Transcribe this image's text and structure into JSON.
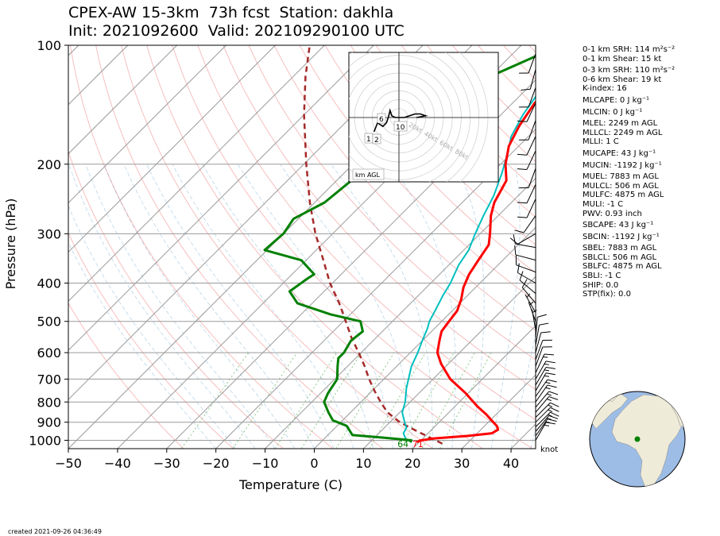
{
  "header": {
    "title_line1": "CPEX-AW 15-3km  73h fcst  Station: dakhla",
    "title_line2": "Init: 2021092600  Valid: 202109290100 UTC"
  },
  "footer": {
    "created": "created 2021-09-26 04:36:49"
  },
  "indices": [
    {
      "text": "0-1 km SRH: 114 m²s⁻²",
      "gap": false
    },
    {
      "text": "0-1 km Shear: 15 kt",
      "gap": false
    },
    {
      "text": "0-3 km SRH: 110 m²s⁻²",
      "gap": true
    },
    {
      "text": "0-6 km Shear: 19 kt",
      "gap": false
    },
    {
      "text": "K-index: 16",
      "gap": false
    },
    {
      "text": "MLCAPE: 0 J kg⁻¹",
      "gap": true
    },
    {
      "text": "MLCIN: 0 J kg⁻¹",
      "gap": true
    },
    {
      "text": "MLEL: 2249 m AGL",
      "gap": true
    },
    {
      "text": "MLLCL: 2249 m AGL",
      "gap": false
    },
    {
      "text": "MLLI: 1 C",
      "gap": false
    },
    {
      "text": "MUCAPE: 43 J kg⁻¹",
      "gap": true
    },
    {
      "text": "MUCIN: -1192 J kg⁻¹",
      "gap": true
    },
    {
      "text": "MUEL: 7883 m AGL",
      "gap": true
    },
    {
      "text": "MULCL: 506 m AGL",
      "gap": false
    },
    {
      "text": "MULFC: 4875 m AGL",
      "gap": false
    },
    {
      "text": "MULI: -1 C",
      "gap": false
    },
    {
      "text": "PWV: 0.93 inch",
      "gap": false
    },
    {
      "text": "SBCAPE: 43 J kg⁻¹",
      "gap": true
    },
    {
      "text": "SBCIN: -1192 J kg⁻¹",
      "gap": true
    },
    {
      "text": "SBEL: 7883 m AGL",
      "gap": true
    },
    {
      "text": "SBLCL: 506 m AGL",
      "gap": false
    },
    {
      "text": "SBLFC: 4875 m AGL",
      "gap": false
    },
    {
      "text": "SBLI: -1 C",
      "gap": false
    },
    {
      "text": "SHIP: 0.0",
      "gap": false
    },
    {
      "text": "STP(fix): 0.0",
      "gap": false
    }
  ],
  "chart_data": {
    "type": "line",
    "subtype": "skew-T log-p",
    "xlabel": "Temperature (C)",
    "ylabel": "Pressure (hPa)",
    "xlim": [
      -50,
      45
    ],
    "ylim": [
      1050,
      100
    ],
    "xticks": [
      -50,
      -40,
      -30,
      -20,
      -10,
      0,
      10,
      20,
      30,
      40
    ],
    "yticks": [
      100,
      200,
      300,
      400,
      500,
      600,
      700,
      800,
      900,
      1000
    ],
    "surface_labels": {
      "dewpoint": "64",
      "temperature": "71"
    },
    "colors": {
      "temperature": "#ff0000",
      "dewpoint": "#008000",
      "wetbulb": "#00bfbf",
      "parcel": "#a52a2a"
    },
    "series": [
      {
        "key": "temperature",
        "points": [
          [
            1012,
            19.6
          ],
          [
            1002,
            19.8
          ],
          [
            990,
            22.0
          ],
          [
            975,
            28.5
          ],
          [
            960,
            33.0
          ],
          [
            940,
            33.5
          ],
          [
            920,
            32.5
          ],
          [
            900,
            31.0
          ],
          [
            860,
            28.0
          ],
          [
            820,
            24.5
          ],
          [
            760,
            19.5
          ],
          [
            700,
            13.5
          ],
          [
            640,
            8.5
          ],
          [
            600,
            5.5
          ],
          [
            560,
            3.5
          ],
          [
            530,
            2.0
          ],
          [
            500,
            1.5
          ],
          [
            470,
            1.0
          ],
          [
            440,
            -0.5
          ],
          [
            410,
            -2.5
          ],
          [
            380,
            -4.0
          ],
          [
            350,
            -5.0
          ],
          [
            320,
            -6.0
          ],
          [
            300,
            -8.0
          ],
          [
            270,
            -11.5
          ],
          [
            250,
            -13.5
          ],
          [
            220,
            -15.5
          ],
          [
            200,
            -19.0
          ],
          [
            180,
            -22.0
          ],
          [
            160,
            -24.0
          ],
          [
            140,
            -25.5
          ],
          [
            120,
            -25.5
          ],
          [
            110,
            -24.5
          ],
          [
            100,
            -24.0
          ]
        ]
      },
      {
        "key": "wetbulb",
        "points": [
          [
            1012,
            18.5
          ],
          [
            990,
            16.5
          ],
          [
            960,
            15.0
          ],
          [
            930,
            14.5
          ],
          [
            900,
            13.0
          ],
          [
            850,
            10.5
          ],
          [
            800,
            9.0
          ],
          [
            740,
            6.5
          ],
          [
            700,
            5.0
          ],
          [
            650,
            3.0
          ],
          [
            600,
            1.5
          ],
          [
            560,
            0.0
          ],
          [
            520,
            -1.5
          ],
          [
            500,
            -2.5
          ],
          [
            470,
            -3.5
          ],
          [
            430,
            -5.0
          ],
          [
            400,
            -6.0
          ],
          [
            360,
            -8.0
          ],
          [
            330,
            -9.0
          ],
          [
            300,
            -11.0
          ],
          [
            270,
            -13.0
          ],
          [
            240,
            -15.0
          ],
          [
            210,
            -18.0
          ],
          [
            190,
            -20.5
          ],
          [
            170,
            -23.5
          ],
          [
            150,
            -25.5
          ],
          [
            130,
            -27.0
          ],
          [
            115,
            -26.5
          ],
          [
            100,
            -26.0
          ]
        ]
      },
      {
        "key": "dewpoint",
        "points": [
          [
            1012,
            18.2
          ],
          [
            1000,
            18.0
          ],
          [
            985,
            12.0
          ],
          [
            970,
            5.0
          ],
          [
            945,
            3.5
          ],
          [
            920,
            2.0
          ],
          [
            890,
            -2.0
          ],
          [
            850,
            -4.5
          ],
          [
            800,
            -7.5
          ],
          [
            760,
            -8.5
          ],
          [
            700,
            -9.5
          ],
          [
            650,
            -12.0
          ],
          [
            620,
            -13.5
          ],
          [
            600,
            -13.5
          ],
          [
            560,
            -14.5
          ],
          [
            530,
            -14.0
          ],
          [
            500,
            -16.5
          ],
          [
            480,
            -24.0
          ],
          [
            450,
            -33.0
          ],
          [
            420,
            -37.0
          ],
          [
            390,
            -36.0
          ],
          [
            380,
            -35.5
          ],
          [
            350,
            -41.0
          ],
          [
            330,
            -50.5
          ],
          [
            300,
            -50.0
          ],
          [
            275,
            -51.0
          ],
          [
            250,
            -48.0
          ],
          [
            220,
            -47.0
          ],
          [
            200,
            -45.0
          ],
          [
            180,
            -44.0
          ],
          [
            160,
            -43.5
          ],
          [
            145,
            -45.0
          ],
          [
            135,
            -44.0
          ],
          [
            120,
            -40.0
          ],
          [
            100,
            -32.0
          ]
        ]
      },
      {
        "key": "parcel",
        "points": [
          [
            1020,
            25.0
          ],
          [
            1000,
            23.0
          ],
          [
            950,
            17.5
          ],
          [
            900,
            12.0
          ],
          [
            850,
            7.5
          ],
          [
            800,
            4.0
          ],
          [
            750,
            0.5
          ],
          [
            700,
            -3.0
          ],
          [
            650,
            -6.5
          ],
          [
            600,
            -10.5
          ],
          [
            550,
            -15.0
          ],
          [
            500,
            -19.5
          ],
          [
            450,
            -24.5
          ],
          [
            400,
            -30.5
          ],
          [
            350,
            -36.5
          ],
          [
            300,
            -43.5
          ],
          [
            250,
            -51.0
          ],
          [
            200,
            -59.5
          ],
          [
            150,
            -70.0
          ],
          [
            120,
            -77.5
          ],
          [
            100,
            -83.0
          ]
        ]
      }
    ],
    "wind_barbs": [
      {
        "p": 1000,
        "dir": 30,
        "speed": 15
      },
      {
        "p": 975,
        "dir": 35,
        "speed": 15
      },
      {
        "p": 950,
        "dir": 40,
        "speed": 15
      },
      {
        "p": 925,
        "dir": 45,
        "speed": 15
      },
      {
        "p": 900,
        "dir": 45,
        "speed": 15
      },
      {
        "p": 875,
        "dir": 45,
        "speed": 15
      },
      {
        "p": 850,
        "dir": 40,
        "speed": 15
      },
      {
        "p": 825,
        "dir": 40,
        "speed": 15
      },
      {
        "p": 800,
        "dir": 35,
        "speed": 15
      },
      {
        "p": 775,
        "dir": 35,
        "speed": 15
      },
      {
        "p": 750,
        "dir": 30,
        "speed": 15
      },
      {
        "p": 725,
        "dir": 30,
        "speed": 15
      },
      {
        "p": 700,
        "dir": 30,
        "speed": 15
      },
      {
        "p": 675,
        "dir": 25,
        "speed": 15
      },
      {
        "p": 650,
        "dir": 20,
        "speed": 10
      },
      {
        "p": 625,
        "dir": 20,
        "speed": 10
      },
      {
        "p": 600,
        "dir": 15,
        "speed": 10
      },
      {
        "p": 575,
        "dir": 10,
        "speed": 10
      },
      {
        "p": 550,
        "dir": 5,
        "speed": 10
      },
      {
        "p": 525,
        "dir": 350,
        "speed": 5
      },
      {
        "p": 500,
        "dir": 340,
        "speed": 5
      },
      {
        "p": 475,
        "dir": 330,
        "speed": 5
      },
      {
        "p": 450,
        "dir": 320,
        "speed": 10
      },
      {
        "p": 425,
        "dir": 310,
        "speed": 10
      },
      {
        "p": 400,
        "dir": 300,
        "speed": 10
      },
      {
        "p": 375,
        "dir": 290,
        "speed": 10
      },
      {
        "p": 350,
        "dir": 285,
        "speed": 10
      },
      {
        "p": 325,
        "dir": 280,
        "speed": 10
      },
      {
        "p": 300,
        "dir": 240,
        "speed": 10
      },
      {
        "p": 270,
        "dir": 215,
        "speed": 10
      },
      {
        "p": 245,
        "dir": 205,
        "speed": 10
      },
      {
        "p": 225,
        "dir": 205,
        "speed": 10
      },
      {
        "p": 205,
        "dir": 200,
        "speed": 10
      },
      {
        "p": 185,
        "dir": 205,
        "speed": 10
      },
      {
        "p": 170,
        "dir": 205,
        "speed": 10
      },
      {
        "p": 155,
        "dir": 200,
        "speed": 10
      },
      {
        "p": 140,
        "dir": 205,
        "speed": 10
      },
      {
        "p": 128,
        "dir": 200,
        "speed": 10
      },
      {
        "p": 115,
        "dir": 195,
        "speed": 10
      },
      {
        "p": 105,
        "dir": 200,
        "speed": 10
      }
    ],
    "wind_units": "knot",
    "hodograph": {
      "range_labels": [
        "20kt",
        "40kt",
        "60kt",
        "80kt"
      ],
      "height_labels": [
        "1",
        "2",
        "6",
        "10"
      ],
      "inset_label": "km AGL",
      "curve_uv": [
        [
          -14,
          -8
        ],
        [
          -12,
          -3
        ],
        [
          -9,
          -5
        ],
        [
          -7,
          -3
        ],
        [
          -6,
          0
        ],
        [
          -5,
          4
        ],
        [
          -4,
          1
        ],
        [
          -2,
          0
        ],
        [
          1,
          0
        ],
        [
          3,
          0
        ],
        [
          6,
          1
        ],
        [
          9,
          2
        ],
        [
          12,
          2
        ],
        [
          15,
          1
        ],
        [
          10,
          0
        ]
      ]
    },
    "station_globe": {
      "lat": 23.7,
      "lon": -15.9
    }
  }
}
